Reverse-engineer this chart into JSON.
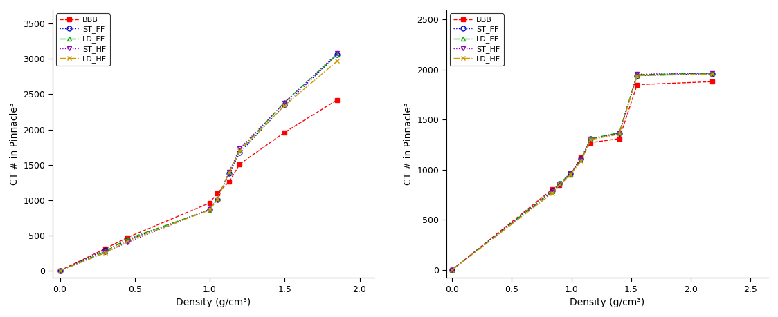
{
  "plot1": {
    "xlabel": "Density (g/cm³)",
    "ylabel": "CT # in Pinnacle³",
    "xlim": [
      -0.05,
      2.1
    ],
    "ylim": [
      -100,
      3700
    ],
    "xticks": [
      0.0,
      0.5,
      1.0,
      1.5,
      2.0
    ],
    "yticks": [
      0,
      500,
      1000,
      1500,
      2000,
      2500,
      3000,
      3500
    ],
    "series": {
      "BBB": {
        "x": [
          0.0,
          0.3,
          0.45,
          1.0,
          1.05,
          1.13,
          1.2,
          1.5,
          1.85
        ],
        "y": [
          0,
          310,
          470,
          960,
          1100,
          1260,
          1510,
          1960,
          2420
        ],
        "color": "#ff0000",
        "linestyle": "--",
        "marker": "s",
        "markerfacecolor": "#ff0000"
      },
      "ST_FF": {
        "x": [
          0.0,
          0.3,
          0.45,
          1.0,
          1.05,
          1.13,
          1.2,
          1.5,
          1.85
        ],
        "y": [
          0,
          290,
          430,
          870,
          1010,
          1380,
          1670,
          2350,
          3060
        ],
        "color": "#0000cc",
        "linestyle": ":",
        "marker": "o",
        "markerfacecolor": "none"
      },
      "LD_FF": {
        "x": [
          0.0,
          0.3,
          0.45,
          1.0,
          1.05,
          1.13,
          1.2,
          1.5,
          1.85
        ],
        "y": [
          0,
          270,
          450,
          860,
          1020,
          1400,
          1700,
          2390,
          3060
        ],
        "color": "#00aa00",
        "linestyle": "-.",
        "marker": "^",
        "markerfacecolor": "none"
      },
      "ST_HF": {
        "x": [
          0.0,
          0.3,
          0.45,
          1.0,
          1.05,
          1.13,
          1.2,
          1.5,
          1.85
        ],
        "y": [
          0,
          260,
          400,
          870,
          1010,
          1400,
          1730,
          2380,
          3080
        ],
        "color": "#8800bb",
        "linestyle": ":",
        "marker": "v",
        "markerfacecolor": "none"
      },
      "LD_HF": {
        "x": [
          0.0,
          0.3,
          0.45,
          1.0,
          1.05,
          1.13,
          1.2,
          1.5,
          1.85
        ],
        "y": [
          0,
          250,
          420,
          860,
          1010,
          1390,
          1700,
          2340,
          2970
        ],
        "color": "#cc9900",
        "linestyle": "-.",
        "marker": "x",
        "markerfacecolor": "#cc9900"
      }
    }
  },
  "plot2": {
    "xlabel": "Density (g/cm³)",
    "ylabel": "CT # in Pinnacle³",
    "xlim": [
      -0.05,
      2.65
    ],
    "ylim": [
      -80,
      2600
    ],
    "xticks": [
      0.0,
      0.5,
      1.0,
      1.5,
      2.0,
      2.5
    ],
    "yticks": [
      0,
      500,
      1000,
      1500,
      2000,
      2500
    ],
    "series": {
      "BBB": {
        "x": [
          0.0,
          0.84,
          0.9,
          0.99,
          1.08,
          1.16,
          1.4,
          1.55,
          2.18
        ],
        "y": [
          0,
          805,
          845,
          950,
          1120,
          1270,
          1310,
          1850,
          1880
        ],
        "color": "#ff0000",
        "linestyle": "--",
        "marker": "s",
        "markerfacecolor": "#ff0000"
      },
      "ST_FF": {
        "x": [
          0.0,
          0.84,
          0.9,
          0.99,
          1.08,
          1.16,
          1.4,
          1.55,
          2.18
        ],
        "y": [
          0,
          790,
          860,
          965,
          1110,
          1310,
          1365,
          1940,
          1960
        ],
        "color": "#0000cc",
        "linestyle": ":",
        "marker": "o",
        "markerfacecolor": "none"
      },
      "LD_FF": {
        "x": [
          0.0,
          0.84,
          0.9,
          0.99,
          1.08,
          1.16,
          1.4,
          1.55,
          2.18
        ],
        "y": [
          0,
          785,
          865,
          955,
          1100,
          1310,
          1370,
          1950,
          1965
        ],
        "color": "#00aa00",
        "linestyle": "-.",
        "marker": "^",
        "markerfacecolor": "none"
      },
      "ST_HF": {
        "x": [
          0.0,
          0.84,
          0.9,
          0.99,
          1.08,
          1.16,
          1.4,
          1.55,
          2.18
        ],
        "y": [
          0,
          775,
          845,
          960,
          1095,
          1305,
          1365,
          1955,
          1965
        ],
        "color": "#8800bb",
        "linestyle": ":",
        "marker": "v",
        "markerfacecolor": "none"
      },
      "LD_HF": {
        "x": [
          0.0,
          0.84,
          0.9,
          0.99,
          1.08,
          1.16,
          1.4,
          1.55,
          2.18
        ],
        "y": [
          0,
          765,
          850,
          950,
          1085,
          1300,
          1355,
          1940,
          1955
        ],
        "color": "#cc9900",
        "linestyle": "-.",
        "marker": "x",
        "markerfacecolor": "#cc9900"
      }
    }
  },
  "legend_labels": [
    "BBB",
    "ST_FF",
    "LD_FF",
    "ST_HF",
    "LD_HF"
  ],
  "background_color": "#ffffff"
}
